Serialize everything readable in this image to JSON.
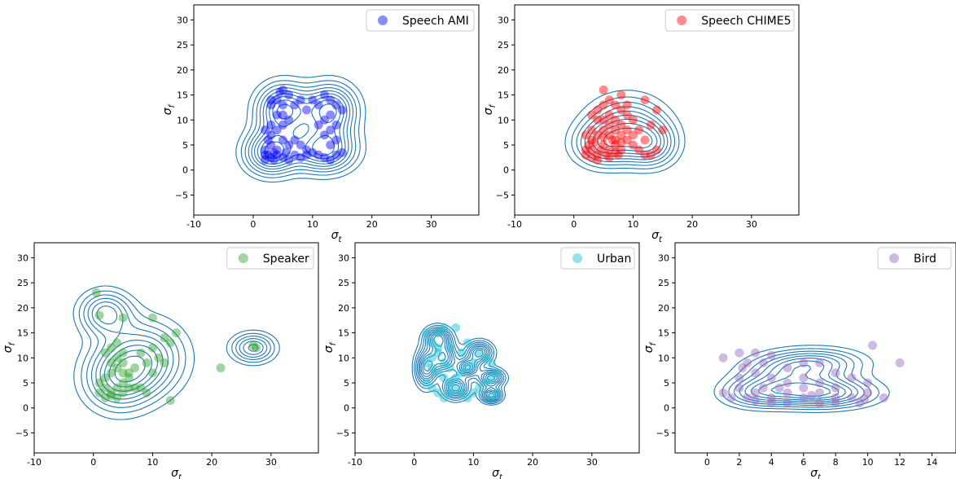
{
  "contour_color": "#1f77b4",
  "chart_data": [
    {
      "type": "scatter",
      "legend": "Speech AMI",
      "color": "#0000ff",
      "xlabel": "σt",
      "xlabel_main": "σ",
      "xlabel_sub": "t",
      "ylabel": "σf",
      "ylabel_main": "σ",
      "ylabel_sub": "f",
      "xlim": [
        -10,
        38
      ],
      "ylim": [
        -9,
        33
      ],
      "xticks": [
        "-10",
        "0",
        "10",
        "20",
        "30"
      ],
      "yticks": [
        "−5",
        "0",
        "5",
        "10",
        "15",
        "20",
        "25",
        "30"
      ],
      "legend_position": "upper-right",
      "kde_centers": [
        [
          3,
          3.5,
          3.0,
          3.0
        ],
        [
          12,
          4,
          3.5,
          3.0
        ],
        [
          5,
          12,
          3.0,
          3.5
        ],
        [
          13,
          12,
          3.0,
          3.5
        ]
      ],
      "points": [
        [
          2,
          2
        ],
        [
          2.5,
          3
        ],
        [
          3,
          2.5
        ],
        [
          3.5,
          2
        ],
        [
          4,
          3
        ],
        [
          2,
          4
        ],
        [
          3,
          5
        ],
        [
          2.5,
          6
        ],
        [
          4,
          4
        ],
        [
          5,
          2.5
        ],
        [
          5.5,
          3.5
        ],
        [
          6,
          2
        ],
        [
          7,
          3
        ],
        [
          8,
          2.5
        ],
        [
          9,
          3
        ],
        [
          10,
          3.5
        ],
        [
          11,
          3
        ],
        [
          12,
          2.5
        ],
        [
          13,
          2
        ],
        [
          14,
          3
        ],
        [
          15,
          3.5
        ],
        [
          13,
          5
        ],
        [
          14,
          6
        ],
        [
          12,
          7
        ],
        [
          13,
          8
        ],
        [
          14,
          9
        ],
        [
          12,
          10
        ],
        [
          13,
          11
        ],
        [
          14,
          13
        ],
        [
          13,
          14
        ],
        [
          12,
          15
        ],
        [
          11,
          13
        ],
        [
          11,
          9
        ],
        [
          9,
          12
        ],
        [
          8,
          14
        ],
        [
          7,
          13
        ],
        [
          6,
          15
        ],
        [
          5,
          16
        ],
        [
          4,
          14
        ],
        [
          3,
          13
        ],
        [
          4,
          11
        ],
        [
          5,
          11
        ],
        [
          6,
          10
        ],
        [
          5,
          9
        ],
        [
          4,
          8
        ],
        [
          3,
          9
        ],
        [
          2,
          8
        ],
        [
          3,
          7
        ],
        [
          5,
          6
        ],
        [
          7,
          6
        ],
        [
          8,
          5
        ],
        [
          9,
          4
        ],
        [
          6,
          5
        ],
        [
          3.5,
          3.5
        ],
        [
          2,
          3
        ],
        [
          10,
          14
        ],
        [
          15,
          12
        ],
        [
          3,
          14
        ],
        [
          4.5,
          15.5
        ],
        [
          5,
          13
        ]
      ]
    },
    {
      "type": "scatter",
      "legend": "Speech CHIME5",
      "color": "#ff0000",
      "xlabel": "σt",
      "xlabel_main": "σ",
      "xlabel_sub": "t",
      "ylabel": "σf",
      "ylabel_main": "σ",
      "ylabel_sub": "f",
      "xlim": [
        -10,
        38
      ],
      "ylim": [
        -9,
        33
      ],
      "xticks": [
        "-10",
        "0",
        "10",
        "20",
        "30"
      ],
      "yticks": [
        "−5",
        "0",
        "5",
        "10",
        "15",
        "20",
        "25",
        "30"
      ],
      "legend_position": "upper-right",
      "kde_centers": [
        [
          5,
          5,
          3.5,
          3.0
        ],
        [
          9,
          9,
          4.5,
          4.0
        ],
        [
          13,
          5,
          3.0,
          3.0
        ]
      ],
      "points": [
        [
          2,
          3
        ],
        [
          3,
          4
        ],
        [
          2.5,
          5
        ],
        [
          3,
          6
        ],
        [
          4,
          3
        ],
        [
          4.5,
          4
        ],
        [
          5,
          5
        ],
        [
          5.5,
          3
        ],
        [
          6,
          4
        ],
        [
          6.5,
          6
        ],
        [
          7,
          5
        ],
        [
          7.5,
          3
        ],
        [
          8,
          4
        ],
        [
          2,
          7
        ],
        [
          3,
          8
        ],
        [
          4,
          7
        ],
        [
          5,
          8
        ],
        [
          6,
          9
        ],
        [
          7,
          8
        ],
        [
          8,
          7
        ],
        [
          9,
          6
        ],
        [
          10,
          5
        ],
        [
          11,
          4
        ],
        [
          12,
          3
        ],
        [
          13,
          3
        ],
        [
          14,
          4
        ],
        [
          12,
          6
        ],
        [
          11,
          8
        ],
        [
          10,
          10
        ],
        [
          9,
          11
        ],
        [
          8,
          12
        ],
        [
          7,
          13
        ],
        [
          6,
          14
        ],
        [
          5,
          13
        ],
        [
          4,
          12
        ],
        [
          3,
          11
        ],
        [
          4,
          10
        ],
        [
          5,
          10
        ],
        [
          6,
          11
        ],
        [
          7,
          10
        ],
        [
          8,
          9
        ],
        [
          9,
          8
        ],
        [
          10,
          7
        ],
        [
          13,
          9
        ],
        [
          14,
          12
        ],
        [
          15,
          8
        ],
        [
          12,
          14
        ],
        [
          9,
          13
        ],
        [
          8,
          15
        ],
        [
          5,
          16
        ],
        [
          3,
          2.5
        ],
        [
          4,
          2
        ],
        [
          6,
          2.5
        ],
        [
          7,
          3.5
        ],
        [
          5,
          6.5
        ],
        [
          6,
          7
        ],
        [
          8,
          5.5
        ],
        [
          3.5,
          5.5
        ],
        [
          2,
          4
        ],
        [
          7,
          6
        ]
      ]
    },
    {
      "type": "scatter",
      "legend": "Speaker",
      "color": "#2ca02c",
      "xlabel": "σt",
      "xlabel_main": "σ",
      "xlabel_sub": "t",
      "ylabel": "σf",
      "ylabel_main": "σ",
      "ylabel_sub": "f",
      "xlim": [
        -10,
        38
      ],
      "ylim": [
        -9,
        33
      ],
      "xticks": [
        "-10",
        "0",
        "10",
        "20",
        "30"
      ],
      "yticks": [
        "−5",
        "0",
        "5",
        "10",
        "15",
        "20",
        "25",
        "30"
      ],
      "legend_position": "upper-right",
      "kde_centers": [
        [
          4,
          6,
          4.0,
          4.5
        ],
        [
          9,
          10,
          4.5,
          5.0
        ],
        [
          2,
          19,
          3.0,
          3.0
        ],
        [
          27,
          12,
          2.5,
          2.0
        ]
      ],
      "points": [
        [
          0.5,
          23
        ],
        [
          1,
          18.5
        ],
        [
          5,
          18
        ],
        [
          10,
          18
        ],
        [
          14,
          15
        ],
        [
          12,
          14
        ],
        [
          13,
          13
        ],
        [
          4,
          13
        ],
        [
          3,
          12
        ],
        [
          2,
          11
        ],
        [
          5,
          11
        ],
        [
          8,
          11
        ],
        [
          10,
          12
        ],
        [
          11,
          10
        ],
        [
          12,
          9
        ],
        [
          9,
          9
        ],
        [
          7,
          8
        ],
        [
          6,
          7
        ],
        [
          5,
          7
        ],
        [
          4,
          8
        ],
        [
          3,
          7
        ],
        [
          2,
          6
        ],
        [
          1,
          5
        ],
        [
          2,
          4
        ],
        [
          3,
          3
        ],
        [
          4,
          2
        ],
        [
          5,
          3
        ],
        [
          6,
          4
        ],
        [
          7,
          4
        ],
        [
          8,
          4
        ],
        [
          9,
          3
        ],
        [
          10,
          7
        ],
        [
          1,
          3
        ],
        [
          2,
          2
        ],
        [
          3,
          2.5
        ],
        [
          4,
          4
        ],
        [
          5,
          5
        ],
        [
          6,
          6
        ],
        [
          3,
          9
        ],
        [
          4,
          10
        ],
        [
          5,
          9
        ],
        [
          13,
          1.5
        ],
        [
          21.5,
          8
        ],
        [
          27,
          12.5
        ],
        [
          27.5,
          12
        ]
      ]
    },
    {
      "type": "scatter",
      "legend": "Urban",
      "color": "#17becf",
      "xlabel": "σt",
      "xlabel_main": "σ",
      "xlabel_sub": "t",
      "ylabel": "σf",
      "ylabel_main": "σ",
      "ylabel_sub": "f",
      "xlim": [
        -10,
        38
      ],
      "ylim": [
        -9,
        33
      ],
      "xticks": [
        "-10",
        "0",
        "10",
        "20",
        "30"
      ],
      "yticks": [
        "−5",
        "0",
        "5",
        "10",
        "15",
        "20",
        "25",
        "30"
      ],
      "legend_position": "upper-right",
      "kde_centers": [
        [
          2,
          8,
          1.2,
          2.5
        ],
        [
          5,
          10,
          1.5,
          2.0
        ],
        [
          7,
          4,
          1.5,
          1.5
        ],
        [
          11,
          11,
          1.5,
          1.5
        ],
        [
          13,
          6,
          1.5,
          1.2
        ],
        [
          13,
          2.5,
          1.2,
          1.0
        ],
        [
          4,
          14,
          1.5,
          1.5
        ],
        [
          9,
          8,
          1.2,
          1.2
        ]
      ],
      "points": [
        [
          2,
          15
        ],
        [
          4,
          15
        ],
        [
          5,
          16
        ],
        [
          7,
          16
        ],
        [
          3,
          13
        ],
        [
          4,
          12
        ],
        [
          6,
          12
        ],
        [
          8,
          11
        ],
        [
          9,
          13
        ],
        [
          11,
          11
        ],
        [
          12,
          10
        ],
        [
          13,
          9
        ],
        [
          2,
          9
        ],
        [
          3,
          8
        ],
        [
          4,
          7
        ],
        [
          5,
          6
        ],
        [
          6,
          5
        ],
        [
          7,
          4
        ],
        [
          8,
          3
        ],
        [
          9,
          2
        ],
        [
          10,
          3
        ],
        [
          11,
          4
        ],
        [
          12,
          5
        ],
        [
          13,
          6
        ],
        [
          14,
          7
        ],
        [
          13,
          2
        ],
        [
          14,
          3
        ],
        [
          2,
          5
        ],
        [
          3,
          4
        ],
        [
          4,
          3
        ],
        [
          5,
          2
        ],
        [
          6,
          3
        ],
        [
          7,
          6
        ],
        [
          8,
          7
        ],
        [
          9,
          8
        ],
        [
          10,
          9
        ],
        [
          3,
          10
        ],
        [
          4,
          11
        ],
        [
          5,
          9
        ],
        [
          6,
          8
        ]
      ]
    },
    {
      "type": "scatter",
      "legend": "Bird",
      "color": "#9467bd",
      "xlabel": "σt",
      "xlabel_main": "σ",
      "xlabel_sub": "t",
      "ylabel": "σf",
      "ylabel_main": "σ",
      "ylabel_sub": "f",
      "xlim": [
        -2,
        15.5
      ],
      "ylim": [
        -9,
        33
      ],
      "xticks": [
        "0",
        "2",
        "4",
        "6",
        "8",
        "10",
        "12",
        "14"
      ],
      "yticks": [
        "−5",
        "0",
        "5",
        "10",
        "15",
        "20",
        "25",
        "30"
      ],
      "legend_position": "upper-right",
      "kde_centers": [
        [
          3,
          3,
          1.5,
          2.0
        ],
        [
          6,
          3,
          2.0,
          2.0
        ],
        [
          8,
          3,
          2.0,
          2.0
        ],
        [
          5,
          7,
          2.0,
          2.5
        ],
        [
          7,
          9,
          2.0,
          2.0
        ]
      ],
      "points": [
        [
          1,
          10
        ],
        [
          2,
          11
        ],
        [
          3,
          11
        ],
        [
          4,
          10.5
        ],
        [
          2.5,
          9
        ],
        [
          3.5,
          9
        ],
        [
          5,
          8
        ],
        [
          6,
          9
        ],
        [
          7,
          9
        ],
        [
          8,
          7
        ],
        [
          9,
          6
        ],
        [
          10,
          5
        ],
        [
          10.3,
          12.5
        ],
        [
          12,
          9
        ],
        [
          2,
          4
        ],
        [
          3,
          3
        ],
        [
          4,
          2
        ],
        [
          5,
          3
        ],
        [
          6,
          4
        ],
        [
          7,
          3
        ],
        [
          8,
          2
        ],
        [
          9,
          2
        ],
        [
          10,
          3
        ],
        [
          11,
          2
        ],
        [
          1,
          3
        ],
        [
          1.5,
          2
        ],
        [
          2.5,
          2
        ],
        [
          3,
          1.5
        ],
        [
          4,
          1
        ],
        [
          5,
          1
        ],
        [
          6,
          2
        ],
        [
          7,
          1
        ],
        [
          8,
          1
        ],
        [
          9.5,
          1
        ],
        [
          2,
          6
        ],
        [
          3,
          7
        ],
        [
          4,
          6
        ],
        [
          5,
          5
        ],
        [
          6,
          6
        ],
        [
          7,
          5
        ],
        [
          8,
          4
        ],
        [
          3.5,
          4
        ],
        [
          4.5,
          4
        ],
        [
          6.5,
          2.5
        ],
        [
          2.2,
          8
        ],
        [
          9.8,
          1.8
        ]
      ]
    }
  ]
}
